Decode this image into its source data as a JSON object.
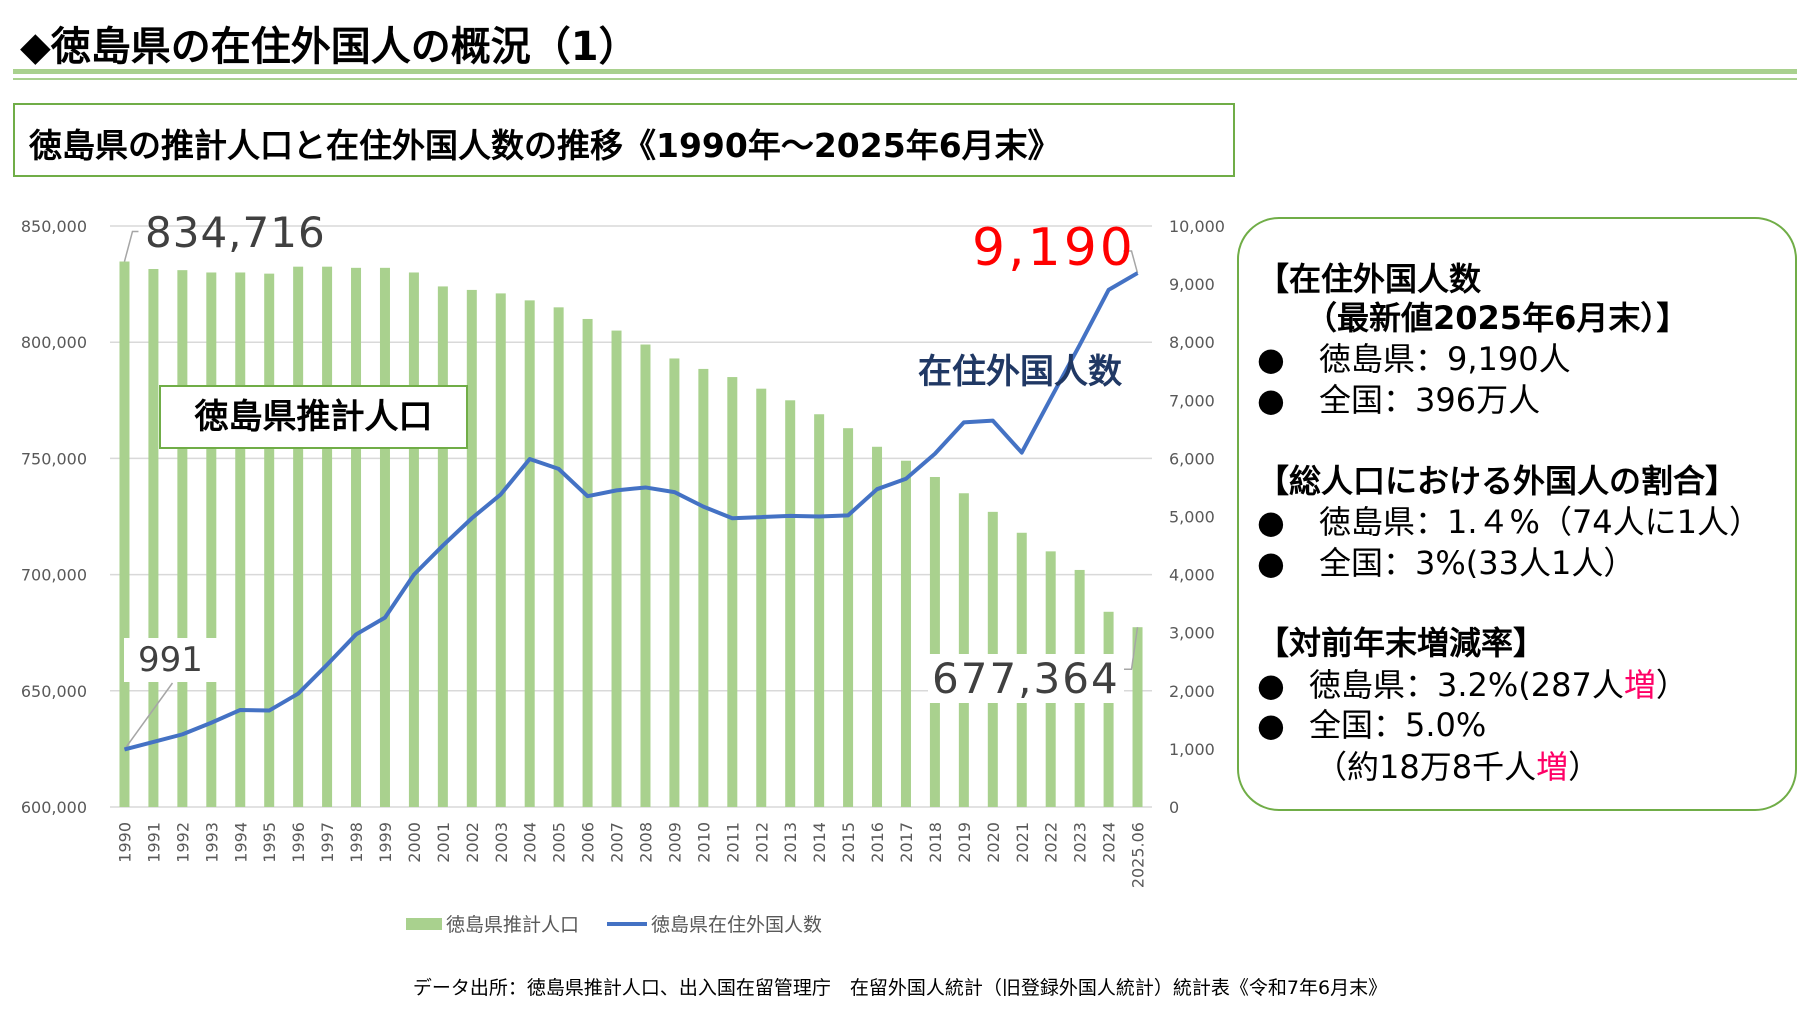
{
  "header": {
    "title": "◆徳島県の在住外国人の概況（1）",
    "subtitle": "徳島県の推計人口と在住外国人数の推移《1990年～2025年6月末》"
  },
  "chart_data": {
    "type": "bar+line",
    "categories": [
      "1990",
      "1991",
      "1992",
      "1993",
      "1994",
      "1995",
      "1996",
      "1997",
      "1998",
      "1999",
      "2000",
      "2001",
      "2002",
      "2003",
      "2004",
      "2005",
      "2006",
      "2007",
      "2008",
      "2009",
      "2010",
      "2011",
      "2012",
      "2013",
      "2014",
      "2015",
      "2016",
      "2017",
      "2018",
      "2019",
      "2020",
      "2021",
      "2022",
      "2023",
      "2024",
      "2025.06"
    ],
    "series": [
      {
        "name": "徳島県推計人口",
        "type": "bar",
        "axis": "left",
        "color": "#a9d18e",
        "values": [
          834716,
          831500,
          831000,
          830000,
          830000,
          829500,
          832500,
          832500,
          832000,
          832000,
          830000,
          824000,
          822500,
          821000,
          818000,
          815000,
          810000,
          805000,
          799000,
          793000,
          788500,
          785000,
          780000,
          775000,
          769000,
          763000,
          755000,
          749000,
          742000,
          735000,
          727000,
          718000,
          710000,
          702000,
          684000,
          677364
        ]
      },
      {
        "name": "徳島県在住外国人数",
        "type": "line",
        "axis": "right",
        "color": "#4472c4",
        "values": [
          991,
          1120,
          1250,
          1450,
          1670,
          1660,
          1950,
          2450,
          2970,
          3260,
          4000,
          4500,
          4970,
          5380,
          5990,
          5820,
          5350,
          5450,
          5500,
          5420,
          5170,
          4970,
          4990,
          5010,
          5000,
          5020,
          5470,
          5650,
          6080,
          6620,
          6650,
          6100,
          7030,
          7950,
          8900,
          9190
        ]
      }
    ],
    "y_left": {
      "range": [
        600000,
        850000
      ],
      "ticks": [
        "600,000",
        "650,000",
        "700,000",
        "750,000",
        "800,000",
        "850,000"
      ]
    },
    "y_right": {
      "range": [
        0,
        10000
      ],
      "ticks": [
        "0",
        "1,000",
        "2,000",
        "3,000",
        "4,000",
        "5,000",
        "6,000",
        "7,000",
        "8,000",
        "9,000",
        "10,000"
      ]
    },
    "grid": true,
    "legend": "bottom",
    "annotations": {
      "first_bar": "834,716",
      "first_line": "991",
      "last_bar": "677,364",
      "last_line": "9,190",
      "pop_label": "徳島県推計人口",
      "foreign_label": "在住外国人数"
    }
  },
  "info": {
    "sec1_title": "【在住外国人数",
    "sec1_sub": "（最新値2025年6月末）】",
    "sec1_items": [
      "徳島県：9,190人",
      "全国：396万人"
    ],
    "sec2_title": "【総人口における外国人の割合】",
    "sec2_items": [
      "徳島県：1.４%（74人に1人）",
      "全国：3%(33人1人）"
    ],
    "sec3_title": "【対前年末増減率】",
    "sec3_item1": "徳島県：3.2%(287人",
    "sec3_item1_hl": "増",
    "sec3_item1_end": "）",
    "sec3_item2": "全国：5.0%",
    "sec3_item2b": "（約18万8千人",
    "sec3_item2b_hl": "増",
    "sec3_item2b_end": "）",
    "bullet": "●",
    "highlight_color": "#ff0066"
  },
  "footer": "データ出所：徳島県推計人口、出入国在留管理庁　在留外国人統計（旧登録外国人統計）統計表《令和7年6月末》"
}
